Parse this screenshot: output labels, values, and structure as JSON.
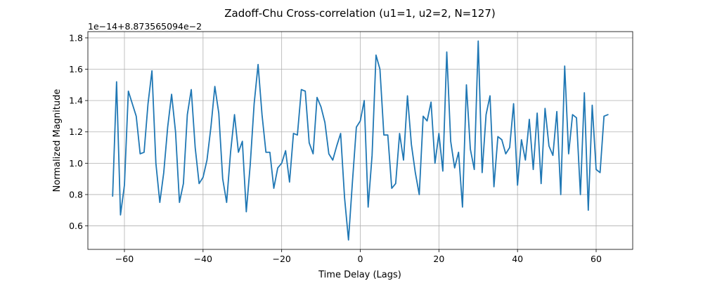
{
  "chart_data": {
    "type": "line",
    "title": "Zadoff-Chu Cross-correlation (u1=1, u2=2, N=127)",
    "xlabel": "Time Delay (Lags)",
    "ylabel": "Normalized Magnitude",
    "y_offset_label": "1e−14+8.873565094e−2",
    "y_scale": "1e-14",
    "y_offset": "8.873565094e-2",
    "xlim": [
      -69.3,
      69.3
    ],
    "ylim": [
      0.45,
      1.84
    ],
    "x_ticks": [
      -60,
      -40,
      -20,
      0,
      20,
      40,
      60
    ],
    "x_tick_labels": [
      "−60",
      "−40",
      "−20",
      "0",
      "20",
      "40",
      "60"
    ],
    "y_ticks": [
      0.6,
      0.8,
      1.0,
      1.2,
      1.4,
      1.6,
      1.8
    ],
    "y_tick_labels": [
      "0.6",
      "0.8",
      "1.0",
      "1.2",
      "1.4",
      "1.6",
      "1.8"
    ],
    "grid": true,
    "color": "#1f77b4",
    "x": [
      -63,
      -62,
      -61,
      -60,
      -59,
      -58,
      -57,
      -56,
      -55,
      -54,
      -53,
      -52,
      -51,
      -50,
      -49,
      -48,
      -47,
      -46,
      -45,
      -44,
      -43,
      -42,
      -41,
      -40,
      -39,
      -38,
      -37,
      -36,
      -35,
      -34,
      -33,
      -32,
      -31,
      -30,
      -29,
      -28,
      -27,
      -26,
      -25,
      -24,
      -23,
      -22,
      -21,
      -20,
      -19,
      -18,
      -17,
      -16,
      -15,
      -14,
      -13,
      -12,
      -11,
      -10,
      -9,
      -8,
      -7,
      -6,
      -5,
      -4,
      -3,
      -2,
      -1,
      0,
      1,
      2,
      3,
      4,
      5,
      6,
      7,
      8,
      9,
      10,
      11,
      12,
      13,
      14,
      15,
      16,
      17,
      18,
      19,
      20,
      21,
      22,
      23,
      24,
      25,
      26,
      27,
      28,
      29,
      30,
      31,
      32,
      33,
      34,
      35,
      36,
      37,
      38,
      39,
      40,
      41,
      42,
      43,
      44,
      45,
      46,
      47,
      48,
      49,
      50,
      51,
      52,
      53,
      54,
      55,
      56,
      57,
      58,
      59,
      60,
      61,
      62,
      63
    ],
    "values": [
      0.79,
      1.52,
      0.67,
      0.86,
      1.46,
      1.38,
      1.3,
      1.06,
      1.07,
      1.38,
      1.59,
      1.0,
      0.75,
      0.94,
      1.23,
      1.44,
      1.2,
      0.75,
      0.87,
      1.31,
      1.47,
      1.1,
      0.87,
      0.91,
      1.02,
      1.23,
      1.49,
      1.32,
      0.9,
      0.75,
      1.07,
      1.31,
      1.07,
      1.14,
      0.69,
      0.99,
      1.38,
      1.63,
      1.31,
      1.07,
      1.07,
      0.84,
      0.97,
      1.0,
      1.08,
      0.88,
      1.19,
      1.18,
      1.47,
      1.46,
      1.13,
      1.06,
      1.42,
      1.36,
      1.26,
      1.06,
      1.02,
      1.11,
      1.19,
      0.78,
      0.51,
      0.88,
      1.23,
      1.27,
      1.4,
      0.72,
      1.05,
      1.69,
      1.6,
      1.18,
      1.18,
      0.84,
      0.87,
      1.19,
      1.02,
      1.43,
      1.12,
      0.94,
      0.8,
      1.3,
      1.27,
      1.39,
      1.0,
      1.19,
      0.95,
      1.71,
      1.14,
      0.97,
      1.07,
      0.72,
      1.5,
      1.09,
      0.96,
      1.78,
      0.94,
      1.31,
      1.43,
      0.85,
      1.17,
      1.15,
      1.06,
      1.1,
      1.38,
      0.86,
      1.15,
      1.02,
      1.28,
      0.96,
      1.32,
      0.87,
      1.35,
      1.11,
      1.05,
      1.33,
      0.8,
      1.62,
      1.06,
      1.31,
      1.29,
      0.8,
      1.45,
      0.7,
      1.37,
      0.96,
      0.94,
      1.3,
      1.31
    ]
  }
}
